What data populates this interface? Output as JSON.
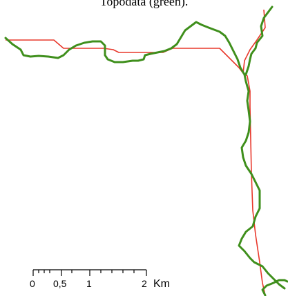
{
  "caption": "Topodata (green).",
  "colors": {
    "red_line": "#e8382c",
    "green_line": "#3f8f1c",
    "background": "#ffffff",
    "scale_bar": "#000000"
  },
  "scale_bar": {
    "labels": [
      "0",
      "0,5",
      "1",
      "2"
    ],
    "unit": "Km"
  }
}
